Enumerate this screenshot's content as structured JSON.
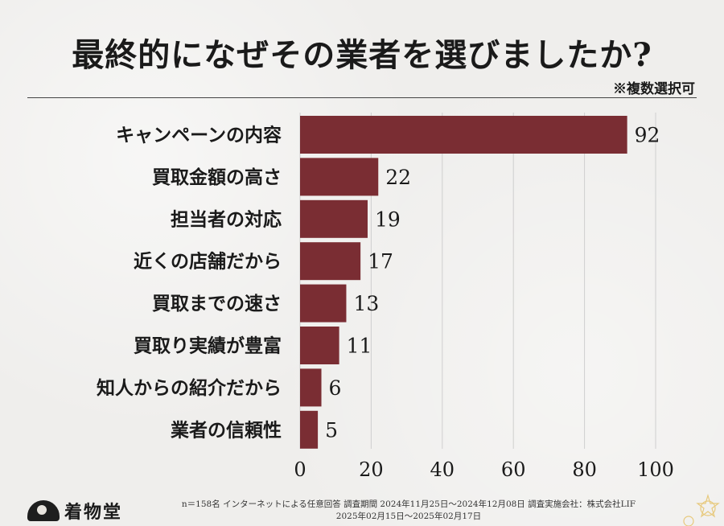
{
  "chart_data": {
    "type": "bar",
    "orientation": "horizontal",
    "title": "最終的になぜその業者を選びましたか?",
    "note": "※複数選択可",
    "categories": [
      "キャンペーンの内容",
      "買取金額の高さ",
      "担当者の対応",
      "近くの店舗だから",
      "買取までの速さ",
      "買取り実績が豊富",
      "知人からの紹介だから",
      "業者の信頼性"
    ],
    "values": [
      92,
      22,
      19,
      17,
      13,
      11,
      6,
      5
    ],
    "xlim": [
      0,
      100
    ],
    "xticks": [
      0,
      20,
      40,
      60,
      80,
      100
    ],
    "grid": true,
    "bar_color": "#7a2d33"
  },
  "brand": "着物堂",
  "footer": {
    "line1": "n＝158名 インターネットによる任意回答 調査期間 2024年11月25日～2024年12月08日 調査実施会社：株式会社LIF",
    "line2": "2025年02月15日～2025年02月17日"
  }
}
